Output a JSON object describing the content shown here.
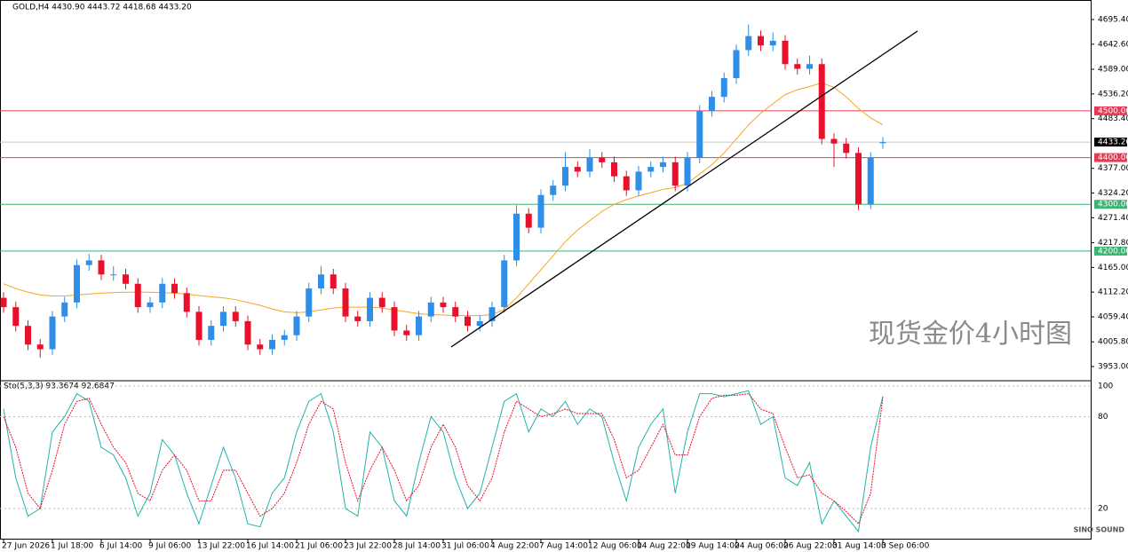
{
  "chart_data": [
    {
      "type": "candlestick",
      "header": "GOLD,H4  4430.90 4443.72 4418.68 4433.20",
      "watermark": "现货金价4小时图",
      "logo": "SINO SOUND",
      "up_color": "#2e8ee8",
      "down_color": "#e8102a",
      "categories": [
        "27 Jun 2026",
        null,
        null,
        null,
        "1 Jul 18:00",
        null,
        null,
        null,
        "6 Jul 14:00",
        null,
        null,
        null,
        "9 Jul 06:00",
        null,
        null,
        null,
        "13 Jul 22:00",
        null,
        null,
        null,
        "16 Jul 14:00",
        null,
        null,
        null,
        "21 Jul 06:00",
        null,
        null,
        null,
        "23 Jul 22:00",
        null,
        null,
        null,
        "28 Jul 14:00",
        null,
        null,
        null,
        "31 Jul 06:00",
        null,
        null,
        null,
        "4 Aug 22:00",
        null,
        null,
        null,
        "7 Aug 14:00",
        null,
        null,
        null,
        "12 Aug 06:00",
        null,
        null,
        null,
        "14 Aug 22:00",
        null,
        null,
        null,
        "19 Aug 14:00",
        null,
        null,
        null,
        "24 Aug 06:00",
        null,
        null,
        null,
        "26 Aug 22:00",
        null,
        null,
        null,
        "31 Aug 14:00",
        null,
        null,
        null,
        "3 Sep 06:00"
      ],
      "ohlc": [
        [
          4100,
          4112,
          4068,
          4080
        ],
        [
          4080,
          4092,
          4028,
          4040
        ],
        [
          4040,
          4052,
          3988,
          4000
        ],
        [
          4000,
          4012,
          3972,
          3990
        ],
        [
          3990,
          4072,
          3978,
          4060
        ],
        [
          4060,
          4102,
          4048,
          4090
        ],
        [
          4090,
          4182,
          4078,
          4170
        ],
        [
          4170,
          4194,
          4158,
          4180
        ],
        [
          4180,
          4192,
          4138,
          4150
        ],
        [
          4150,
          4168,
          4136,
          4150
        ],
        [
          4150,
          4162,
          4118,
          4130
        ],
        [
          4130,
          4142,
          4068,
          4080
        ],
        [
          4080,
          4102,
          4068,
          4090
        ],
        [
          4090,
          4142,
          4078,
          4130
        ],
        [
          4130,
          4142,
          4098,
          4110
        ],
        [
          4110,
          4122,
          4058,
          4070
        ],
        [
          4070,
          4082,
          3998,
          4010
        ],
        [
          4010,
          4052,
          3998,
          4040
        ],
        [
          4040,
          4082,
          4028,
          4070
        ],
        [
          4070,
          4082,
          4038,
          4050
        ],
        [
          4050,
          4062,
          3988,
          4000
        ],
        [
          4000,
          4012,
          3978,
          3990
        ],
        [
          3990,
          4022,
          3978,
          4010
        ],
        [
          4010,
          4032,
          3998,
          4020
        ],
        [
          4020,
          4072,
          4008,
          4060
        ],
        [
          4060,
          4132,
          4048,
          4120
        ],
        [
          4120,
          4168,
          4108,
          4150
        ],
        [
          4150,
          4162,
          4108,
          4120
        ],
        [
          4120,
          4132,
          4048,
          4060
        ],
        [
          4060,
          4072,
          4038,
          4050
        ],
        [
          4050,
          4112,
          4038,
          4100
        ],
        [
          4100,
          4112,
          4068,
          4080
        ],
        [
          4080,
          4092,
          4018,
          4030
        ],
        [
          4030,
          4042,
          4008,
          4020
        ],
        [
          4020,
          4072,
          4008,
          4060
        ],
        [
          4060,
          4102,
          4048,
          4090
        ],
        [
          4090,
          4102,
          4068,
          4080
        ],
        [
          4080,
          4092,
          4048,
          4060
        ],
        [
          4060,
          4072,
          4028,
          4040
        ],
        [
          4040,
          4062,
          4028,
          4050
        ],
        [
          4050,
          4092,
          4038,
          4080
        ],
        [
          4080,
          4192,
          4068,
          4180
        ],
        [
          4180,
          4298,
          4168,
          4280
        ],
        [
          4280,
          4292,
          4238,
          4250
        ],
        [
          4250,
          4332,
          4238,
          4320
        ],
        [
          4320,
          4352,
          4308,
          4340
        ],
        [
          4340,
          4412,
          4328,
          4380
        ],
        [
          4380,
          4392,
          4358,
          4370
        ],
        [
          4370,
          4418,
          4358,
          4400
        ],
        [
          4400,
          4412,
          4378,
          4390
        ],
        [
          4390,
          4402,
          4348,
          4360
        ],
        [
          4360,
          4372,
          4318,
          4330
        ],
        [
          4330,
          4382,
          4318,
          4370
        ],
        [
          4370,
          4392,
          4358,
          4380
        ],
        [
          4380,
          4402,
          4368,
          4390
        ],
        [
          4390,
          4402,
          4328,
          4340
        ],
        [
          4340,
          4412,
          4328,
          4400
        ],
        [
          4400,
          4512,
          4388,
          4500
        ],
        [
          4500,
          4542,
          4488,
          4530
        ],
        [
          4530,
          4582,
          4518,
          4570
        ],
        [
          4570,
          4642,
          4558,
          4630
        ],
        [
          4630,
          4685,
          4618,
          4660
        ],
        [
          4660,
          4672,
          4628,
          4640
        ],
        [
          4640,
          4668,
          4628,
          4650
        ],
        [
          4650,
          4662,
          4588,
          4600
        ],
        [
          4600,
          4612,
          4578,
          4590
        ],
        [
          4590,
          4618,
          4578,
          4600
        ],
        [
          4600,
          4612,
          4428,
          4440
        ],
        [
          4440,
          4452,
          4380,
          4430
        ],
        [
          4430,
          4442,
          4398,
          4410
        ],
        [
          4410,
          4422,
          4288,
          4300
        ],
        [
          4300,
          4412,
          4290,
          4400
        ],
        [
          4430.9,
          4443.72,
          4418.68,
          4433.2
        ]
      ],
      "series": [
        {
          "color": "#f5a623",
          "values": [
            4130,
            4120,
            4112,
            4106,
            4104,
            4104,
            4106,
            4108,
            4110,
            4111,
            4112,
            4112,
            4112,
            4111,
            4110,
            4108,
            4105,
            4102,
            4100,
            4096,
            4090,
            4084,
            4076,
            4070,
            4068,
            4070,
            4074,
            4078,
            4080,
            4080,
            4080,
            4078,
            4074,
            4070,
            4066,
            4064,
            4063,
            4062,
            4062,
            4062,
            4064,
            4075,
            4100,
            4130,
            4160,
            4190,
            4220,
            4245,
            4265,
            4285,
            4300,
            4310,
            4318,
            4325,
            4332,
            4336,
            4345,
            4365,
            4385,
            4410,
            4440,
            4470,
            4495,
            4515,
            4535,
            4545,
            4552,
            4560,
            4550,
            4530,
            4505,
            4485,
            4470
          ]
        }
      ],
      "trendline": {
        "color": "#000000",
        "from": [
          36.65,
          3994.8
        ],
        "to": [
          74.84,
          4670.7
        ]
      },
      "levels": [
        {
          "value": 4500,
          "label": "4500.00",
          "color": "#e43b53"
        },
        {
          "value": 4400,
          "label": "4400.00",
          "color": "#e43b53"
        },
        {
          "value": 4300,
          "label": "4300.00",
          "color": "#3cb371"
        },
        {
          "value": 4200,
          "label": "4200.00",
          "color": "#3cb371"
        }
      ],
      "current": {
        "value": 4433.2,
        "label": "4433.20"
      },
      "ylim": [
        3924.5,
        4737.2
      ],
      "yticks": [
        {
          "value": 4695.4,
          "label": "4695.40"
        },
        {
          "value": 4642.6,
          "label": "4642.60"
        },
        {
          "value": 4589,
          "label": "4589.00"
        },
        {
          "value": 4536.2,
          "label": "4536.20"
        },
        {
          "value": 4483.4,
          "label": "4483.40"
        },
        {
          "value": 4377,
          "label": "4377.00"
        },
        {
          "value": 4324.2,
          "label": "4324.20"
        },
        {
          "value": 4271.4,
          "label": "4271.40"
        },
        {
          "value": 4217.8,
          "label": "4217.80"
        },
        {
          "value": 4165,
          "label": "4165.00"
        },
        {
          "value": 4112.2,
          "label": "4112.20"
        },
        {
          "value": 4059.4,
          "label": "4059.40"
        },
        {
          "value": 4005.8,
          "label": "4005.80"
        },
        {
          "value": 3953,
          "label": "3953.00"
        }
      ]
    },
    {
      "type": "line",
      "title": "Sto(5,3,3) 93.3674 92.6847",
      "series": [
        {
          "color": "#20b2aa",
          "values": [
            85,
            40,
            15,
            20,
            70,
            80,
            95,
            90,
            60,
            55,
            40,
            15,
            30,
            65,
            55,
            30,
            10,
            35,
            60,
            40,
            10,
            8,
            30,
            40,
            70,
            90,
            95,
            70,
            20,
            15,
            70,
            60,
            25,
            15,
            50,
            80,
            70,
            40,
            20,
            30,
            60,
            90,
            95,
            70,
            85,
            80,
            90,
            75,
            85,
            80,
            50,
            25,
            60,
            75,
            85,
            30,
            70,
            95,
            95,
            93,
            95,
            97,
            75,
            80,
            40,
            35,
            50,
            10,
            25,
            15,
            5,
            60,
            93.3674
          ]
        },
        {
          "color": "#e8102a",
          "values": [
            80,
            60,
            30,
            20,
            45,
            75,
            90,
            92,
            75,
            60,
            50,
            30,
            25,
            45,
            55,
            45,
            25,
            25,
            45,
            45,
            30,
            15,
            20,
            30,
            50,
            75,
            90,
            85,
            50,
            25,
            45,
            60,
            45,
            25,
            35,
            60,
            75,
            60,
            35,
            25,
            40,
            70,
            90,
            85,
            80,
            82,
            85,
            82,
            82,
            82,
            65,
            40,
            45,
            60,
            75,
            55,
            55,
            80,
            92,
            94,
            94,
            95,
            85,
            82,
            60,
            40,
            42,
            30,
            25,
            18,
            10,
            30,
            92.6847
          ]
        }
      ],
      "ylim": [
        -0.3,
        102.9
      ],
      "yticks": [
        100,
        80,
        20
      ]
    }
  ]
}
